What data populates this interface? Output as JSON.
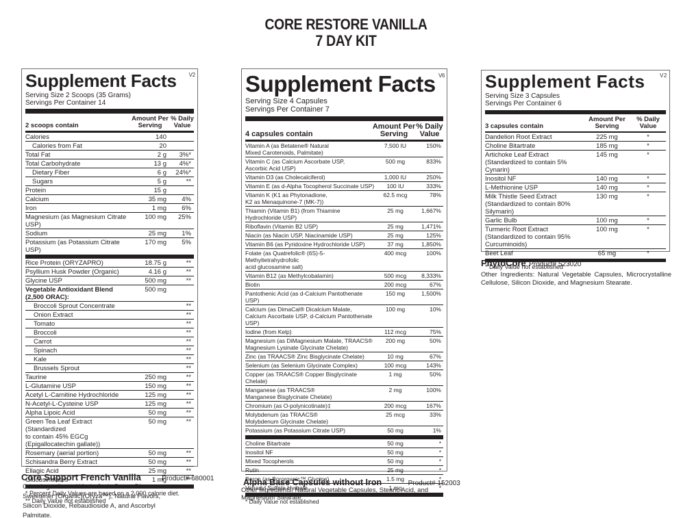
{
  "title": {
    "line1": "CORE RESTORE VANILLA",
    "line2": "7 DAY KIT"
  },
  "panels": [
    {
      "heading": "Supplement Facts",
      "version": "V2",
      "serving_size": "Serving Size 2 Scoops (35 Grams)",
      "servings_per_container": "Servings Per Container 14",
      "contain_label": "2 scoops contain",
      "amount_header": "Amount Per Serving",
      "dv_header": "% Daily Value",
      "rows": [
        {
          "name": "Calories",
          "amount": "140",
          "dv": "",
          "indent": 0
        },
        {
          "name": "Calories from Fat",
          "amount": "20",
          "dv": "",
          "indent": 1
        },
        {
          "name": "Total Fat",
          "amount": "2 g",
          "dv": "3%*",
          "indent": 0
        },
        {
          "name": "Total Carbohydrate",
          "amount": "13 g",
          "dv": "4%*",
          "indent": 0
        },
        {
          "name": "Dietary Fiber",
          "amount": "6 g",
          "dv": "24%*",
          "indent": 1
        },
        {
          "name": "Sugars",
          "amount": "5 g",
          "dv": "**",
          "indent": 1
        },
        {
          "name": "Protein",
          "amount": "15 g",
          "dv": "",
          "indent": 0
        },
        {
          "name": "Calcium",
          "amount": "35 mg",
          "dv": "4%",
          "indent": 0
        },
        {
          "name": "Iron",
          "amount": "1 mg",
          "dv": "6%",
          "indent": 0
        },
        {
          "name": "Magnesium (as Magnesium Citrate USP)",
          "amount": "100 mg",
          "dv": "25%",
          "indent": 0
        },
        {
          "name": "Sodium",
          "amount": "25 mg",
          "dv": "1%",
          "indent": 0
        },
        {
          "name": "Potassium (as Potassium Citrate USP)",
          "amount": "170 mg",
          "dv": "5%",
          "indent": 0
        }
      ],
      "rows2": [
        {
          "name": "Rice Protein (ORYZAPRO)",
          "amount": "18.75 g",
          "dv": "**",
          "indent": 0
        },
        {
          "name": "Psyllium Husk Powder (Organic)",
          "amount": "4.16 g",
          "dv": "**",
          "indent": 0
        },
        {
          "name": "Glycine USP",
          "amount": "500 mg",
          "dv": "**",
          "indent": 0
        },
        {
          "name": "Vegetable Antioxidant Blend\n(2,500 ORAC):",
          "amount": "500 mg",
          "dv": "",
          "indent": 0,
          "bold": true
        },
        {
          "name": "Broccoli Sprout Concentrate",
          "amount": "",
          "dv": "**",
          "indent": 2
        },
        {
          "name": "Onion Extract",
          "amount": "",
          "dv": "**",
          "indent": 2
        },
        {
          "name": "Tomato",
          "amount": "",
          "dv": "**",
          "indent": 2
        },
        {
          "name": "Broccoli",
          "amount": "",
          "dv": "**",
          "indent": 2
        },
        {
          "name": "Carrot",
          "amount": "",
          "dv": "**",
          "indent": 2
        },
        {
          "name": "Spinach",
          "amount": "",
          "dv": "**",
          "indent": 2
        },
        {
          "name": "Kale",
          "amount": "",
          "dv": "**",
          "indent": 2
        },
        {
          "name": "Brussels Sprout",
          "amount": "",
          "dv": "**",
          "indent": 2
        },
        {
          "name": "Taurine",
          "amount": "250 mg",
          "dv": "**",
          "indent": 0
        },
        {
          "name": "L-Glutamine USP",
          "amount": "150 mg",
          "dv": "**",
          "indent": 0
        },
        {
          "name": "Acetyl L-Carnitine Hydrochloride",
          "amount": "125 mg",
          "dv": "**",
          "indent": 0
        },
        {
          "name": "N-Acetyl-L-Cysteine USP",
          "amount": "125 mg",
          "dv": "**",
          "indent": 0
        },
        {
          "name": "Alpha Lipoic Acid",
          "amount": "50 mg",
          "dv": "**",
          "indent": 0
        },
        {
          "name": "Green Tea Leaf Extract (Standardized\nto contain 45% EGCg (Epigallocatechin gallate))",
          "amount": "50 mg",
          "dv": "**",
          "indent": 0
        },
        {
          "name": "Rosemary (aerial portion)",
          "amount": "50 mg",
          "dv": "**",
          "indent": 0
        },
        {
          "name": "Schisandra Berry Extract",
          "amount": "50 mg",
          "dv": "**",
          "indent": 0
        },
        {
          "name": "Ellagic Acid",
          "amount": "25 mg",
          "dv": "**",
          "indent": 0
        },
        {
          "name": "Glucosinolates",
          "amount": "1 mg",
          "dv": "**",
          "indent": 0
        }
      ],
      "footnotes": [
        "* Percent Daily Values are based on a 2,000 calorie diet.",
        "** Daily Value not established"
      ],
      "product_name": "Core Support French Vanilla",
      "product_number": "Product# 680001",
      "other_ingredients": "Other Ingredients: Whole Grain Brown Rice Sweetener (Organic)(Oryza™), Natural Flavors, Silicon Dioxide, Rebaudioside A, and Ascorbyl Palmitate."
    },
    {
      "heading": "Supplement Facts",
      "version": "V6",
      "serving_size": "Serving Size 4 Capsules",
      "servings_per_container": "Servings Per Container 7",
      "contain_label": "4 capsules contain",
      "amount_header": "Amount Per Serving",
      "dv_header": "% Daily Value",
      "rows": [
        {
          "name": "Vitamin A (as Betatene® Natural\nMixed Carotenoids, Palmitate)",
          "amount": "7,500 IU",
          "dv": "150%"
        },
        {
          "name": "Vitamin C (as Calcium Ascorbate USP,\nAscorbic Acid USP)",
          "amount": "500 mg",
          "dv": "833%"
        },
        {
          "name": "Vitamin D3 (as Cholecalciferol)",
          "amount": "1,000 IU",
          "dv": "250%"
        },
        {
          "name": "Vitamin E (as d-Alpha Tocopherol Succinate USP)",
          "amount": "100 IU",
          "dv": "333%"
        },
        {
          "name": "Vitamin K (K1 as Phytonadione,\nK2 as Menaquinone-7 (MK-7))",
          "amount": "62.5 mcg",
          "dv": "78%"
        },
        {
          "name": "Thiamin (Vitamin B1) (from Thiamine Hydrochloride USP)",
          "amount": "25 mg",
          "dv": "1,667%"
        },
        {
          "name": "Riboflavin (Vitamin B2 USP)",
          "amount": "25 mg",
          "dv": "1,471%"
        },
        {
          "name": "Niacin (as Niacin USP, Niacinamide USP)",
          "amount": "25 mg",
          "dv": "125%"
        },
        {
          "name": "Vitamin B6 (as Pyridoxine Hydrochloride USP)",
          "amount": "37 mg",
          "dv": "1,850%"
        },
        {
          "name": "Folate (as Quatrefolic® (6S)-5-Methyltetrahydrofolic\nacid glucosamine salt)",
          "amount": "400 mcg",
          "dv": "100%"
        },
        {
          "name": "Vitamin B12 (as Methylcobalamin)",
          "amount": "500 mcg",
          "dv": "8,333%"
        },
        {
          "name": "Biotin",
          "amount": "200 mcg",
          "dv": "67%"
        },
        {
          "name": "Pantothenic Acid (as d-Calcium Pantothenate USP)",
          "amount": "150 mg",
          "dv": "1,500%"
        },
        {
          "name": "Calcium (as DimaCal® Dicalcium Malate,\nCalcium Ascorbate USP, d-Calcium Pantothenate USP)",
          "amount": "100 mg",
          "dv": "10%"
        },
        {
          "name": "Iodine (from Kelp)",
          "amount": "112 mcg",
          "dv": "75%"
        },
        {
          "name": "Magnesium (as DiMagnesium Malate, TRAACS®\nMagnesium Lysinate Glycinate Chelate)",
          "amount": "200 mg",
          "dv": "50%"
        },
        {
          "name": "Zinc (as TRAACS®  Zinc Bisglycinate Chelate)",
          "amount": "10 mg",
          "dv": "67%"
        },
        {
          "name": "Selenium (as Selenium Glycinate Complex)",
          "amount": "100 mcg",
          "dv": "143%"
        },
        {
          "name": "Copper (as TRAACS® Copper Bisglycinate Chelate)",
          "amount": "1 mg",
          "dv": "50%"
        },
        {
          "name": "Manganese (as TRAACS®\nManganese Bisglycinate Chelate)",
          "amount": "2 mg",
          "dv": "100%"
        },
        {
          "name": "Chromium (as O-polynicotinate)‡",
          "amount": "200 mcg",
          "dv": "167%"
        },
        {
          "name": "Molybdenum (as TRAACS®\nMolybdenum Glycinate Chelate)",
          "amount": "25 mcg",
          "dv": "33%"
        },
        {
          "name": "Potassium (as Potassium Citrate USP)",
          "amount": "50 mg",
          "dv": "1%"
        }
      ],
      "rows2": [
        {
          "name": "Choline Bitartrate",
          "amount": "50 mg",
          "dv": "*"
        },
        {
          "name": "Inositol NF",
          "amount": "50 mg",
          "dv": "*"
        },
        {
          "name": "Mixed Tocopherols",
          "amount": "50 mg",
          "dv": "*"
        },
        {
          "name": "Rutin",
          "amount": "25 mg",
          "dv": "*"
        },
        {
          "name": "Boron (as Bororganic™ Glycine)",
          "amount": "1.5 mg",
          "dv": "*"
        },
        {
          "name": "Vanadyl Sulfate Hydrate",
          "amount": "1 mg",
          "dv": "*"
        }
      ],
      "footnotes": [
        "* Daily Value not established"
      ],
      "product_name": "Alpha Base Capsules without Iron",
      "product_number": "Product# 152003",
      "other_ingredients": "Other Ingredients: Natural Vegetable Capsules, Stearic Acid, and Magnesium Stearate."
    },
    {
      "heading": "Supplement Facts",
      "version": "V2",
      "serving_size": "Serving Size  3 Capsules",
      "servings_per_container": "Servings Per Container  6",
      "contain_label": "3 capsules contain",
      "amount_header": "Amount Per Serving",
      "dv_header": "% Daily Value",
      "rows": [
        {
          "name": "Dandelion Root Extract",
          "amount": "225 mg",
          "dv": "*"
        },
        {
          "name": "Choline Bitartrate",
          "amount": "185 mg",
          "dv": "*"
        },
        {
          "name": "Artichoke Leaf Extract\n(Standardized to contain 5% Cynarin)",
          "amount": "145 mg",
          "dv": "*"
        },
        {
          "name": "Inositol NF",
          "amount": "140 mg",
          "dv": "*"
        },
        {
          "name": "L-Methionine USP",
          "amount": "140 mg",
          "dv": "*"
        },
        {
          "name": "Milk Thistle Seed Extract\n(Standardized to contain 80% Silymarin)",
          "amount": "130 mg",
          "dv": "*"
        },
        {
          "name": "Garlic Bulb",
          "amount": "100 mg",
          "dv": "*"
        },
        {
          "name": "Turmeric Root Extract\n(Standardized to contain 95% Curcuminoids)",
          "amount": "100 mg",
          "dv": "*"
        },
        {
          "name": "Beet Leaf",
          "amount": "65 mg",
          "dv": "*"
        }
      ],
      "footnotes": [
        "* Daily Value not established"
      ],
      "product_name": "PhytoCore",
      "product_number": "Product# 523020",
      "other_ingredients": "Other Ingredients: Natural Vegetable Capsules, Microcrystalline Cellulose, Silicon Dioxide, and Magnesium Stearate."
    }
  ]
}
